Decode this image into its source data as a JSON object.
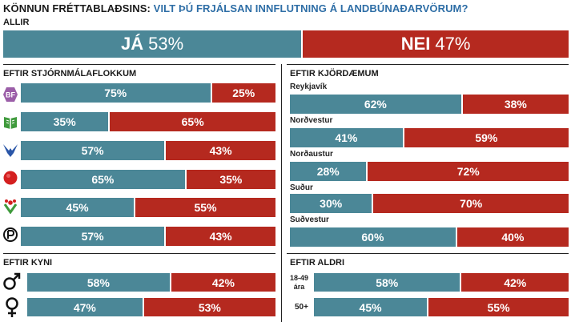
{
  "header": {
    "prefix": "KÖNNUN FRÉTTABLAÐSINS:",
    "question": "VILT ÞÚ FRJÁLSAN INNFLUTNING Á LANDBÚNAÐARVÖRUM?"
  },
  "colors": {
    "yes": "#4b8797",
    "no": "#b5291f",
    "title_accent": "#2e6ea6"
  },
  "chart_data": [
    {
      "type": "bar",
      "title": "ALLIR",
      "categories": [
        ""
      ],
      "series": [
        {
          "name": "JÁ",
          "values": [
            53
          ]
        },
        {
          "name": "NEI",
          "values": [
            47
          ]
        }
      ]
    },
    {
      "type": "bar",
      "title": "EFTIR STJÓRNMÁLAFLOKKUM",
      "categories": [
        "bf-logo-icon",
        "book-logo-icon",
        "falcon-logo-icon",
        "rose-logo-icon",
        "flower-logo-icon",
        "pirate-logo-icon"
      ],
      "values": [
        75,
        35,
        57,
        65,
        45,
        57
      ],
      "value_labels": [
        "75%",
        "35%",
        "57%",
        "65%",
        "45%",
        "57%"
      ],
      "remainder_labels": [
        "25%",
        "65%",
        "43%",
        "35%",
        "55%",
        "43%"
      ]
    },
    {
      "type": "bar",
      "title": "EFTIR KJÖRDÆMUM",
      "categories": [
        "Reykjavík",
        "Norðvestur",
        "Norðaustur",
        "Suður",
        "Suðvestur"
      ],
      "values": [
        62,
        41,
        28,
        30,
        60
      ],
      "value_labels": [
        "62%",
        "41%",
        "28%",
        "30%",
        "60%"
      ],
      "remainder_labels": [
        "38%",
        "59%",
        "72%",
        "70%",
        "40%"
      ]
    },
    {
      "type": "bar",
      "title": "EFTIR KYNI",
      "categories": [
        "male-symbol-icon",
        "female-symbol-icon"
      ],
      "values": [
        58,
        47
      ],
      "value_labels": [
        "58%",
        "47%"
      ],
      "remainder_labels": [
        "42%",
        "53%"
      ]
    },
    {
      "type": "bar",
      "title": "EFTIR ALDRI",
      "categories": [
        "18-49 ára",
        "50+"
      ],
      "values": [
        58,
        45
      ],
      "value_labels": [
        "58%",
        "45%"
      ],
      "remainder_labels": [
        "42%",
        "55%"
      ]
    }
  ],
  "allir": {
    "yes_word": "JÁ",
    "yes_pct": "53%",
    "no_word": "NEI",
    "no_pct": "47%"
  },
  "age_labels": {
    "a1": "18-49",
    "a2": "ára",
    "b": "50+"
  }
}
